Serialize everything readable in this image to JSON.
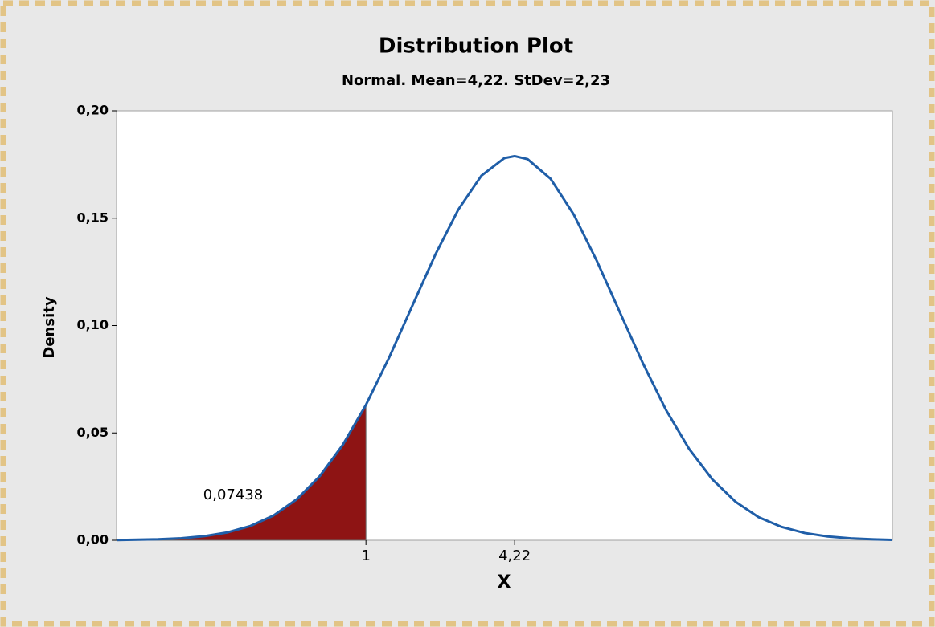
{
  "chart_data": {
    "type": "line",
    "title": "Distribution Plot",
    "subtitle": "Normal. Mean=4,22. StDev=2,23",
    "xlabel": "X",
    "ylabel": "Density",
    "x": [
      -4.4,
      -3.5,
      -3,
      -2.5,
      -2,
      -1.5,
      -1,
      -0.5,
      0,
      0.5,
      1,
      1.5,
      2,
      2.5,
      3,
      3.5,
      4,
      4.22,
      4.5,
      5,
      5.5,
      6,
      6.5,
      7,
      7.5,
      8,
      8.5,
      9,
      9.5,
      10,
      10.5,
      11,
      11.5,
      12,
      12.4
    ],
    "series": [
      {
        "color": "#1f5ea8",
        "values": [
          0.0001,
          0.00045,
          0.00095,
          0.00191,
          0.00366,
          0.00667,
          0.01156,
          0.01905,
          0.02986,
          0.04449,
          0.06306,
          0.08501,
          0.109,
          0.1329,
          0.154,
          0.1698,
          0.178,
          0.1789,
          0.1775,
          0.1683,
          0.1517,
          0.1301,
          0.1061,
          0.0823,
          0.0606,
          0.0425,
          0.0284,
          0.018,
          0.0108,
          0.00623,
          0.00339,
          0.00176,
          0.00087,
          0.00041,
          0.00021
        ]
      }
    ],
    "shade": {
      "x_end": 1,
      "color": "#8e1414",
      "probability": 0.07438,
      "probability_label": "0,07438"
    },
    "xlim": [
      -4.4,
      12.4
    ],
    "xticks": [
      1,
      {
        "value": 4.22,
        "label": "4,22"
      }
    ],
    "ylim": [
      0,
      0.2
    ],
    "yticks": [
      {
        "value": 0,
        "label": "0,00"
      },
      {
        "value": 0.05,
        "label": "0,05"
      },
      {
        "value": 0.1,
        "label": "0,10"
      },
      {
        "value": 0.15,
        "label": "0,15"
      },
      {
        "value": 0.2,
        "label": "0,20"
      }
    ],
    "grid": false
  }
}
